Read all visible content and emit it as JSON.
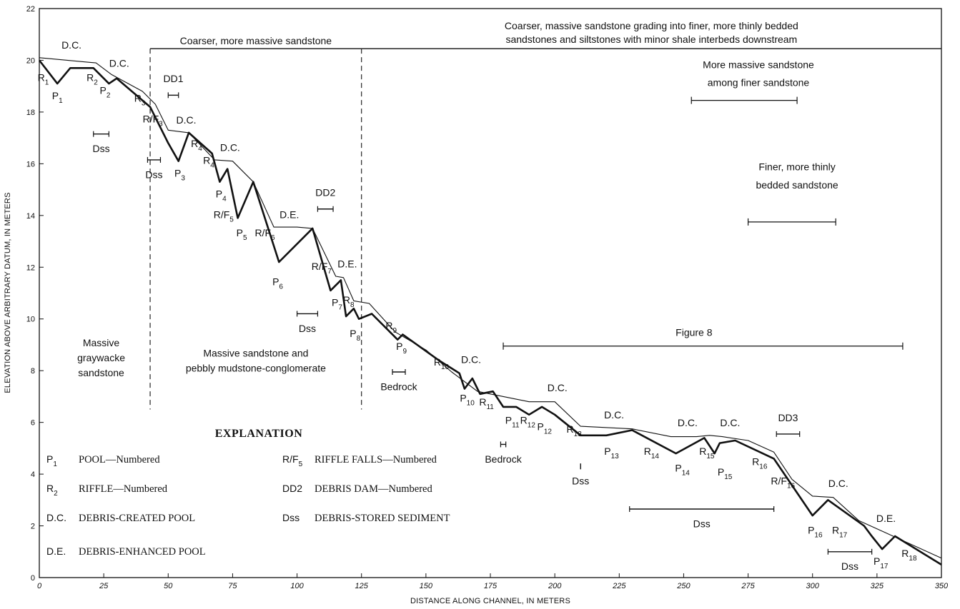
{
  "chart_data": {
    "type": "line",
    "xlabel": "DISTANCE ALONG CHANNEL, IN METERS",
    "ylabel": "ELEVATION ABOVE ARBITRARY DATUM, IN METERS",
    "xlim": [
      0,
      350
    ],
    "ylim": [
      0,
      22
    ],
    "xticks": [
      0,
      25,
      50,
      75,
      100,
      125,
      150,
      175,
      200,
      225,
      250,
      275,
      300,
      325,
      350
    ],
    "yticks": [
      0,
      2,
      4,
      6,
      8,
      10,
      12,
      14,
      16,
      18,
      20,
      22
    ],
    "grid": false,
    "series": [
      {
        "role": "water-surface",
        "x": [
          0,
          22,
          28,
          40,
          45,
          50,
          58,
          68,
          75,
          83,
          91,
          100,
          106,
          115,
          118,
          122,
          128,
          138,
          150,
          160,
          170,
          180,
          190,
          200,
          210,
          230,
          245,
          255,
          260,
          265,
          275,
          285,
          292,
          300,
          308,
          318,
          328,
          350
        ],
        "y": [
          20.1,
          19.9,
          19.45,
          18.8,
          18.3,
          17.3,
          17.2,
          16.15,
          16.1,
          15.3,
          13.55,
          13.55,
          13.5,
          11.65,
          11.6,
          10.7,
          10.6,
          9.5,
          8.8,
          7.95,
          7.2,
          7.0,
          6.8,
          6.8,
          5.85,
          5.75,
          5.45,
          5.45,
          5.5,
          5.45,
          5.3,
          4.85,
          3.8,
          3.15,
          3.1,
          2.2,
          1.75,
          0.75
        ]
      },
      {
        "role": "channel-bed",
        "x": [
          0,
          7,
          12,
          21,
          27,
          30,
          43,
          50,
          54,
          58,
          67,
          70,
          73,
          77,
          83,
          93,
          106,
          113,
          117,
          119,
          122,
          124,
          129,
          139,
          141,
          155,
          163,
          165,
          168,
          171,
          176,
          180,
          185,
          190,
          195,
          200,
          210,
          220,
          230,
          247,
          258,
          262,
          264,
          270,
          285,
          300,
          306,
          320,
          323,
          327,
          332,
          350
        ],
        "y": [
          20.0,
          19.1,
          19.7,
          19.7,
          19.1,
          19.3,
          18.2,
          16.8,
          16.1,
          17.2,
          16.4,
          15.3,
          15.8,
          13.9,
          15.3,
          12.2,
          13.5,
          11.1,
          11.5,
          10.1,
          10.4,
          10.0,
          10.2,
          9.2,
          9.4,
          8.4,
          7.9,
          7.3,
          7.7,
          7.1,
          7.2,
          6.6,
          6.6,
          6.3,
          6.6,
          6.3,
          5.5,
          5.5,
          5.7,
          4.8,
          5.4,
          4.8,
          5.2,
          5.3,
          4.6,
          2.4,
          3.0,
          2.0,
          1.6,
          1.1,
          1.6,
          0.5
        ]
      }
    ],
    "feature_labels": [
      {
        "sym": "R",
        "sub": "1",
        "x": 1.5,
        "y": 19.2
      },
      {
        "sym": "P",
        "sub": "1",
        "x": 7,
        "y": 18.5
      },
      {
        "sym": "R",
        "sub": "2",
        "x": 20.5,
        "y": 19.2
      },
      {
        "sym": "P",
        "sub": "2",
        "x": 25.5,
        "y": 18.7
      },
      {
        "sym": "R",
        "sub": "3",
        "x": 39,
        "y": 18.4
      },
      {
        "sym": "R/F",
        "sub": "3",
        "x": 44,
        "y": 17.6
      },
      {
        "sym": "P",
        "sub": "3",
        "x": 54.5,
        "y": 15.5
      },
      {
        "sym": "R",
        "sub": "4",
        "x": 61,
        "y": 16.65
      },
      {
        "sym": "R",
        "sub": "4'",
        "x": 66,
        "y": 16.0
      },
      {
        "sym": "P",
        "sub": "4",
        "x": 70.5,
        "y": 14.7
      },
      {
        "sym": "R/F",
        "sub": "5",
        "x": 71.5,
        "y": 13.9
      },
      {
        "sym": "P",
        "sub": "5",
        "x": 78.5,
        "y": 13.2
      },
      {
        "sym": "R/F",
        "sub": "6",
        "x": 87.5,
        "y": 13.2
      },
      {
        "sym": "P",
        "sub": "6",
        "x": 92.5,
        "y": 11.3
      },
      {
        "sym": "R/F",
        "sub": "7",
        "x": 109.5,
        "y": 11.9
      },
      {
        "sym": "P",
        "sub": "7",
        "x": 115.5,
        "y": 10.5
      },
      {
        "sym": "R",
        "sub": "8",
        "x": 120,
        "y": 10.6
      },
      {
        "sym": "P",
        "sub": "8",
        "x": 122.5,
        "y": 9.3
      },
      {
        "sym": "R",
        "sub": "9",
        "x": 136.5,
        "y": 9.6
      },
      {
        "sym": "P",
        "sub": "9",
        "x": 140.5,
        "y": 8.8
      },
      {
        "sym": "R",
        "sub": "10",
        "x": 156,
        "y": 8.2
      },
      {
        "sym": "P",
        "sub": "10",
        "x": 166,
        "y": 6.8
      },
      {
        "sym": "R",
        "sub": "11",
        "x": 173.5,
        "y": 6.65
      },
      {
        "sym": "P",
        "sub": "11",
        "x": 183.5,
        "y": 5.95
      },
      {
        "sym": "R",
        "sub": "12",
        "x": 189.5,
        "y": 5.95
      },
      {
        "sym": "P",
        "sub": "12",
        "x": 196,
        "y": 5.7
      },
      {
        "sym": "R",
        "sub": "13",
        "x": 207.5,
        "y": 5.6
      },
      {
        "sym": "P",
        "sub": "13",
        "x": 222,
        "y": 4.75
      },
      {
        "sym": "R",
        "sub": "14",
        "x": 237.5,
        "y": 4.75
      },
      {
        "sym": "P",
        "sub": "14",
        "x": 249.5,
        "y": 4.1
      },
      {
        "sym": "R",
        "sub": "15",
        "x": 259,
        "y": 4.75
      },
      {
        "sym": "P",
        "sub": "15",
        "x": 266,
        "y": 3.95
      },
      {
        "sym": "R",
        "sub": "16",
        "x": 279.5,
        "y": 4.35
      },
      {
        "sym": "R/F",
        "sub": "16",
        "x": 288.5,
        "y": 3.6
      },
      {
        "sym": "P",
        "sub": "16",
        "x": 301,
        "y": 1.7
      },
      {
        "sym": "R",
        "sub": "17",
        "x": 310.5,
        "y": 1.7
      },
      {
        "sym": "P",
        "sub": "17",
        "x": 326.5,
        "y": 0.5
      },
      {
        "sym": "R",
        "sub": "18",
        "x": 337.5,
        "y": 0.8
      }
    ],
    "pool_labels": [
      {
        "text": "D.C.",
        "x": 12.5,
        "y": 20.45
      },
      {
        "text": "D.C.",
        "x": 31,
        "y": 19.75
      },
      {
        "text": "D.C.",
        "x": 57,
        "y": 17.55
      },
      {
        "text": "D.C.",
        "x": 74,
        "y": 16.5
      },
      {
        "text": "D.E.",
        "x": 97,
        "y": 13.9
      },
      {
        "text": "D.E.",
        "x": 119.5,
        "y": 12.0
      },
      {
        "text": "D.C.",
        "x": 167.5,
        "y": 8.3
      },
      {
        "text": "D.C.",
        "x": 201,
        "y": 7.2
      },
      {
        "text": "D.C.",
        "x": 223,
        "y": 6.15
      },
      {
        "text": "D.C.",
        "x": 251.5,
        "y": 5.85
      },
      {
        "text": "D.C.",
        "x": 268,
        "y": 5.85
      },
      {
        "text": "D.C.",
        "x": 310,
        "y": 3.5
      },
      {
        "text": "D.E.",
        "x": 328.5,
        "y": 2.15
      }
    ],
    "range_markers": [
      {
        "label": "DD1",
        "x0": 50,
        "x1": 54,
        "y": 18.65,
        "label_y": 19.15
      },
      {
        "label": "DD2",
        "x0": 108,
        "x1": 114,
        "y": 14.25,
        "label_y": 14.75
      },
      {
        "label": "DD3",
        "x0": 286,
        "x1": 295,
        "y": 5.55,
        "label_y": 6.05
      },
      {
        "label": "Dss",
        "x0": 21,
        "x1": 27,
        "y": 17.15,
        "label_y": 16.45
      },
      {
        "label": "Dss",
        "x0": 42,
        "x1": 47,
        "y": 16.15,
        "label_y": 15.45
      },
      {
        "label": "Dss",
        "x0": 100,
        "x1": 108,
        "y": 10.2,
        "label_y": 9.5
      },
      {
        "label": "Bedrock",
        "x0": 137,
        "x1": 142,
        "y": 7.95,
        "label_y": 7.25
      },
      {
        "label": "Bedrock",
        "x0": 179,
        "x1": 181,
        "y": 5.15,
        "label_y": 4.45
      },
      {
        "label": "Dss",
        "x0": 210,
        "x1": 210,
        "y": 4.3,
        "label_y": 3.6
      },
      {
        "label": "Dss",
        "x0": 229,
        "x1": 285,
        "y": 2.65,
        "label_y": 1.95
      },
      {
        "label": "Dss",
        "x0": 306,
        "x1": 323,
        "y": 1.0,
        "label_y": 0.3
      }
    ],
    "region_spans": [
      {
        "label_lines": [
          "More massive sandstone",
          "among finer sandstone"
        ],
        "x0": 253,
        "x1": 294,
        "y": 18.45,
        "text_x": 279,
        "line1_y": 19.7,
        "line2_y": 19.0
      },
      {
        "label_lines": [
          "Finer, more thinly",
          "bedded sandstone"
        ],
        "x0": 275,
        "x1": 309,
        "y": 13.75,
        "text_x": 294,
        "line1_y": 15.75,
        "line2_y": 15.05
      },
      {
        "label_lines": [
          "Figure 8"
        ],
        "x0": 180,
        "x1": 335,
        "y": 8.95,
        "text_x": 254,
        "line1_y": 9.35
      }
    ],
    "zones": [
      {
        "lines": [
          "Massive",
          "graywacke",
          "sandstone"
        ],
        "x": 24,
        "y": 8.95
      },
      {
        "lines": [
          "Massive sandstone and",
          "pebbly mudstone-conglomerate"
        ],
        "x": 84,
        "y": 8.55
      }
    ],
    "boundaries_x": [
      43,
      125
    ],
    "top_band": {
      "left_label": "Coarser, more massive sandstone",
      "right_label_lines": [
        "Coarser, massive sandstone grading into finer, more thinly bedded",
        "sandstones and siltstones with minor shale interbeds downstream"
      ]
    },
    "explanation": {
      "title": "EXPLANATION",
      "items": [
        {
          "sym": "P",
          "sub": "1",
          "desc": "POOL—Numbered"
        },
        {
          "sym": "R/F",
          "sub": "5",
          "desc": "RIFFLE FALLS—Numbered"
        },
        {
          "sym": "R",
          "sub": "2",
          "desc": "RIFFLE—Numbered"
        },
        {
          "sym": "DD2",
          "sub": "",
          "desc": "DEBRIS DAM—Numbered"
        },
        {
          "sym": "D.C.",
          "sub": "",
          "desc": "DEBRIS-CREATED POOL"
        },
        {
          "sym": "Dss",
          "sub": "",
          "desc": "DEBRIS-STORED SEDIMENT"
        },
        {
          "sym": "D.E.",
          "sub": "",
          "desc": "DEBRIS-ENHANCED POOL"
        }
      ]
    }
  }
}
